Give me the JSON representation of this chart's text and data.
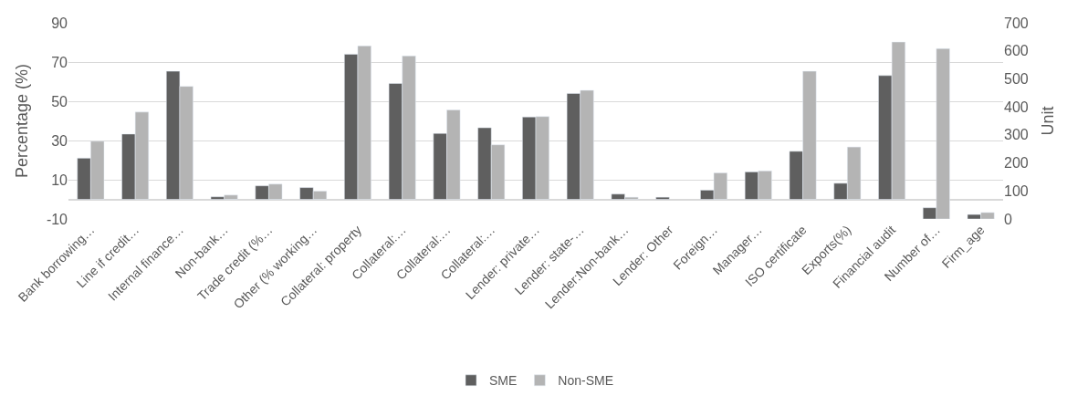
{
  "chart_data": {
    "type": "bar",
    "ylabel": "Percentage (%)",
    "y2label": "Unit",
    "categories": [
      "Bank borrowing…",
      "Line if credit…",
      "Internal finance…",
      "Non-bank…",
      "Trade credit (%…",
      "Other (% working…",
      "Collateral: property",
      "Collateral:…",
      "Collateral:…",
      "Collateral:…",
      "Lender: private…",
      "Lender: state-…",
      "Lender:Non-bank…",
      "Lender: Other",
      "Foreign…",
      "Manager…",
      "ISO certificate",
      "Exports(%)",
      "Financial audit",
      "Number of…",
      "Firm_age"
    ],
    "series": [
      {
        "name": "SME",
        "color": "#5f5f5f",
        "values": [
          21,
          33.3,
          65.3,
          1.3,
          6.9,
          6,
          74,
          59.1,
          33.6,
          36.5,
          42,
          54,
          2.7,
          1.1,
          4.7,
          14,
          24.5,
          8.2,
          63.1,
          null,
          null
        ]
      },
      {
        "name": "Non-SME",
        "color": "#b4b4b4",
        "values": [
          29.6,
          44.5,
          57.6,
          2.2,
          7.8,
          4.2,
          78.2,
          73.1,
          45.6,
          27.8,
          42.2,
          55.6,
          1.1,
          null,
          13.5,
          14.5,
          65.3,
          26.7,
          80.2,
          null,
          null
        ]
      },
      {
        "color": "#5f5f5f",
        "axis": "y2",
        "values": [
          null,
          null,
          null,
          null,
          null,
          null,
          null,
          null,
          null,
          null,
          null,
          null,
          null,
          null,
          null,
          null,
          null,
          null,
          null,
          40,
          16
        ]
      },
      {
        "color": "#b4b4b4",
        "axis": "y2",
        "values": [
          null,
          null,
          null,
          null,
          null,
          null,
          null,
          null,
          null,
          null,
          null,
          null,
          null,
          null,
          null,
          null,
          null,
          null,
          null,
          608,
          23
        ]
      }
    ],
    "ylim": [
      -10,
      90
    ],
    "yticks": [
      -10,
      10,
      30,
      50,
      70,
      90
    ],
    "y2lim": [
      0,
      700
    ],
    "y2ticks": [
      0,
      100,
      200,
      300,
      400,
      500,
      600,
      700
    ],
    "grid": "y",
    "legend": "bottom"
  }
}
